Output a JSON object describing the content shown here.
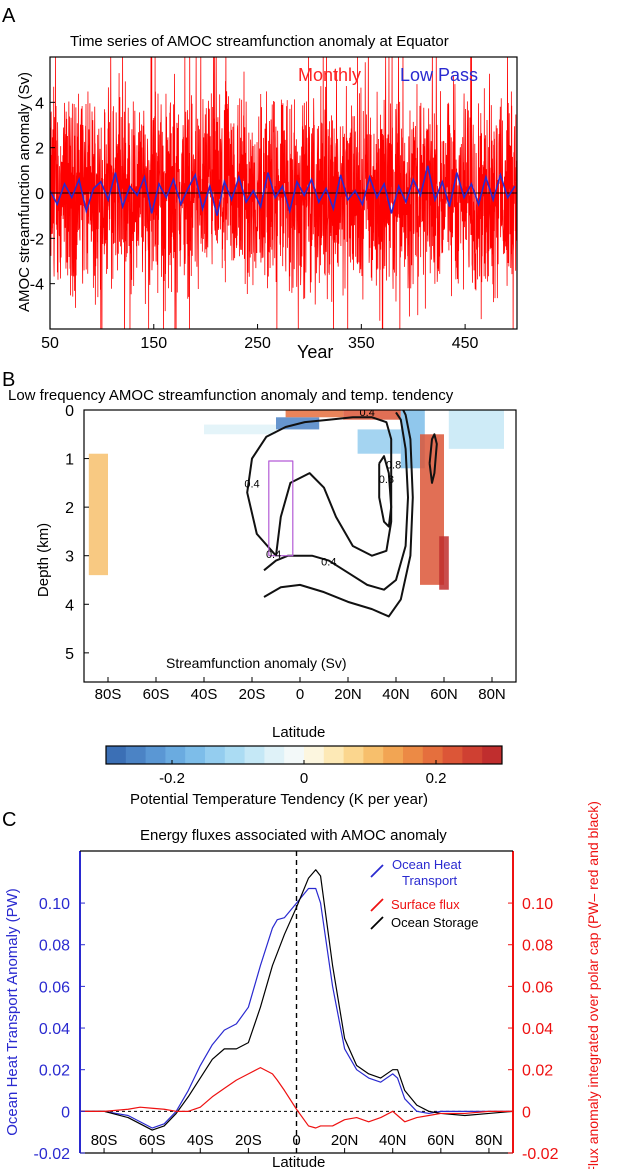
{
  "panels": {
    "a": {
      "letter": "A"
    },
    "b": {
      "letter": "B"
    },
    "c": {
      "letter": "C"
    }
  },
  "chart_data": [
    {
      "id": "A",
      "type": "line",
      "title": "Time series of AMOC streamfunction anomaly at Equator",
      "xlabel": "Year",
      "ylabel": "AMOC streamfunction anomaly (Sv)",
      "xlim": [
        50,
        500
      ],
      "ylim": [
        -6,
        6
      ],
      "xticks": [
        50,
        150,
        250,
        350,
        450
      ],
      "yticks": [
        4,
        2,
        0,
        -2,
        -4
      ],
      "legend": {
        "placement": "top-right"
      },
      "series": [
        {
          "name": "Monthly",
          "color": "#ff0000",
          "envelope": [
            -6,
            6
          ],
          "typical_amplitude": 2.5
        },
        {
          "name": "Low Pass",
          "color": "#2a2ad0",
          "x": [
            50,
            57,
            64,
            71,
            78,
            85,
            92,
            99,
            106,
            113,
            120,
            127,
            134,
            141,
            148,
            155,
            162,
            169,
            176,
            183,
            190,
            197,
            204,
            211,
            218,
            225,
            232,
            239,
            246,
            253,
            260,
            267,
            274,
            281,
            288,
            295,
            302,
            309,
            316,
            323,
            330,
            337,
            344,
            351,
            358,
            365,
            372,
            379,
            386,
            393,
            400,
            407,
            414,
            421,
            428,
            435,
            442,
            449,
            456,
            463,
            470,
            477,
            484,
            491,
            498
          ],
          "y": [
            0.1,
            -0.5,
            0.4,
            -0.2,
            0.6,
            -0.8,
            0.2,
            0.5,
            -0.3,
            0.9,
            -0.6,
            0.3,
            -0.1,
            0.7,
            -0.9,
            0.4,
            -0.2,
            0.6,
            -0.5,
            0.2,
            0.8,
            -0.7,
            0.3,
            -1.0,
            0.5,
            -0.3,
            0.7,
            -0.4,
            0.1,
            -0.6,
            0.9,
            -0.2,
            0.3,
            -0.8,
            0.5,
            -0.1,
            0.6,
            -0.4,
            0.2,
            -0.7,
            0.8,
            -0.3,
            0.1,
            -0.5,
            0.7,
            -0.2,
            0.4,
            -0.9,
            0.3,
            -0.4,
            0.6,
            -0.1,
            1.2,
            -0.3,
            0.5,
            -0.6,
            0.9,
            -0.2,
            0.4,
            -0.5,
            0.7,
            -0.3,
            0.8,
            -0.2,
            0.3
          ]
        },
        {
          "name": "",
          "color": "#000000",
          "x": [
            50,
            500
          ],
          "y": [
            0,
            0
          ]
        }
      ]
    },
    {
      "id": "B",
      "type": "heatmap",
      "title": "Low frequency AMOC streamfunction anomaly and temp. tendency",
      "xlabel": "Latitude",
      "ylabel": "Depth (km)",
      "xlim": [
        -90,
        90
      ],
      "ylim": [
        0,
        5.6
      ],
      "xticks": [
        "80S",
        "60S",
        "40S",
        "20S",
        "0",
        "20N",
        "40N",
        "60N",
        "80N"
      ],
      "yticks": [
        0,
        1,
        2,
        3,
        4,
        5
      ],
      "annotation": "Streamfunction anomaly (Sv)",
      "contour_labels": [
        "0.4",
        "0.4",
        "0.4",
        "0.4",
        "0.8",
        "0.8"
      ],
      "contours": [
        {
          "level": 0.4,
          "points": [
            [
              -15,
              3.3
            ],
            [
              -10,
              3.1
            ],
            [
              -5,
              3.0
            ],
            [
              5,
              3.0
            ],
            [
              12,
              3.1
            ],
            [
              20,
              3.35
            ],
            [
              28,
              3.6
            ],
            [
              35,
              3.7
            ],
            [
              40,
              3.5
            ],
            [
              44,
              2.8
            ],
            [
              45,
              1.8
            ],
            [
              44,
              0.8
            ],
            [
              42,
              0.2
            ],
            [
              40,
              0.05
            ]
          ]
        },
        {
          "level": 0.4,
          "points": [
            [
              -15,
              3.85
            ],
            [
              -8,
              3.65
            ],
            [
              0,
              3.6
            ],
            [
              10,
              3.75
            ],
            [
              20,
              3.95
            ],
            [
              30,
              4.1
            ],
            [
              37,
              4.25
            ],
            [
              42,
              3.9
            ],
            [
              46,
              3.0
            ],
            [
              47,
              1.8
            ],
            [
              46,
              0.6
            ],
            [
              44,
              0.1
            ],
            [
              43,
              0.0
            ]
          ]
        },
        {
          "level": 0.4,
          "points": [
            [
              -10,
              3.0
            ],
            [
              -18,
              2.55
            ],
            [
              -22,
              1.7
            ],
            [
              -20,
              1.0
            ],
            [
              -14,
              0.55
            ],
            [
              -6,
              0.35
            ],
            [
              2,
              0.25
            ],
            [
              12,
              0.2
            ],
            [
              22,
              0.15
            ],
            [
              30,
              0.15
            ],
            [
              36,
              0.25
            ],
            [
              38,
              0.6
            ],
            [
              38,
              1.4
            ],
            [
              38,
              2.3
            ],
            [
              36,
              2.9
            ],
            [
              30,
              3.0
            ],
            [
              22,
              2.8
            ],
            [
              15,
              2.2
            ],
            [
              10,
              1.6
            ],
            [
              4,
              1.3
            ],
            [
              -4,
              1.5
            ],
            [
              -8,
              2.2
            ],
            [
              -10,
              3.0
            ]
          ]
        },
        {
          "level": 0.8,
          "points": [
            [
              33,
              1.1
            ],
            [
              35,
              0.95
            ],
            [
              37,
              1.3
            ],
            [
              38,
              2.0
            ],
            [
              37,
              2.4
            ],
            [
              35,
              2.3
            ],
            [
              33,
              1.8
            ],
            [
              33,
              1.1
            ]
          ]
        },
        {
          "level": 0.2,
          "points": [
            [
              54,
              1.1
            ],
            [
              55,
              0.6
            ],
            [
              56,
              0.5
            ],
            [
              57,
              0.7
            ],
            [
              56,
              1.3
            ],
            [
              55,
              1.5
            ],
            [
              54,
              1.1
            ]
          ]
        },
        {
          "level": 0.0,
          "points": [
            [
              -13,
              3.0
            ],
            [
              -13,
              1.05
            ],
            [
              -3,
              1.05
            ],
            [
              -3,
              3.0
            ],
            [
              -13,
              3.0
            ]
          ]
        }
      ],
      "colorbar": {
        "label": "Potential Temperature Tendency (K per year)",
        "range": [
          -0.3,
          0.3
        ],
        "ticks": [
          "-0.2",
          "0",
          "0.2"
        ],
        "colors": [
          "#3b6fb5",
          "#4b83c5",
          "#5a97d4",
          "#6aabe0",
          "#7dbde9",
          "#94cdef",
          "#abdcf3",
          "#c5e8f6",
          "#dff2f8",
          "#f3f9f9",
          "#fcf6df",
          "#fde9b6",
          "#fbd68e",
          "#f7bf6c",
          "#f2a553",
          "#ec8a45",
          "#e56f3d",
          "#dc5637",
          "#cf4032",
          "#c02e2e"
        ]
      },
      "tendency_regions": [
        {
          "lat": [
            -10,
            8
          ],
          "depth": [
            0.15,
            0.4
          ],
          "value": -0.25
        },
        {
          "lat": [
            -6,
            18
          ],
          "depth": [
            0.0,
            0.15
          ],
          "value": 0.2
        },
        {
          "lat": [
            18,
            42
          ],
          "depth": [
            0.0,
            0.2
          ],
          "value": 0.22
        },
        {
          "lat": [
            24,
            42
          ],
          "depth": [
            0.4,
            0.9
          ],
          "value": -0.14
        },
        {
          "lat": [
            42,
            52
          ],
          "depth": [
            0.0,
            1.2
          ],
          "value": -0.16
        },
        {
          "lat": [
            50,
            60
          ],
          "depth": [
            0.5,
            3.6
          ],
          "value": 0.22
        },
        {
          "lat": [
            58,
            62
          ],
          "depth": [
            2.6,
            3.7
          ],
          "value": 0.28
        },
        {
          "lat": [
            -88,
            -80
          ],
          "depth": [
            0.9,
            3.4
          ],
          "value": 0.1
        },
        {
          "lat": [
            -40,
            -10
          ],
          "depth": [
            0.3,
            0.5
          ],
          "value": -0.05
        },
        {
          "lat": [
            62,
            85
          ],
          "depth": [
            0.0,
            0.8
          ],
          "value": -0.08
        }
      ]
    },
    {
      "id": "C",
      "type": "line",
      "title": "Energy fluxes associated with AMOC anomaly",
      "xlabel": "Latitude",
      "ylabel": "Ocean Heat Transport Anomaly (PW)",
      "ylabel_right": "Energy Flux anomaly integrated over polar cap (PW– red and black)",
      "xlim": [
        -90,
        90
      ],
      "ylim": [
        -0.02,
        0.125
      ],
      "xticks": [
        "80S",
        "60S",
        "40S",
        "20S",
        "0",
        "20N",
        "40N",
        "60N",
        "80N"
      ],
      "yticks": [
        "0.10",
        "0.08",
        "0.06",
        "0.04",
        "0.02",
        "0",
        "-0.02"
      ],
      "yticks_right": [
        "0.10",
        "0.08",
        "0.06",
        "0.04",
        "0.02",
        "0",
        "-0.02"
      ],
      "legend": {
        "placement": "top-right"
      },
      "x": [
        -90,
        -80,
        -70,
        -65,
        -60,
        -55,
        -50,
        -45,
        -40,
        -35,
        -30,
        -25,
        -20,
        -15,
        -10,
        -8,
        -5,
        0,
        5,
        8,
        10,
        15,
        20,
        25,
        30,
        35,
        40,
        42,
        45,
        50,
        55,
        60,
        70,
        80,
        90
      ],
      "series": [
        {
          "name": "Ocean Heat Transport",
          "color": "#2a2ad0",
          "y": [
            0,
            0,
            -0.002,
            -0.005,
            -0.008,
            -0.006,
            0.0,
            0.01,
            0.022,
            0.032,
            0.039,
            0.042,
            0.05,
            0.07,
            0.088,
            0.092,
            0.093,
            0.1,
            0.107,
            0.107,
            0.1,
            0.06,
            0.03,
            0.02,
            0.016,
            0.014,
            0.018,
            0.016,
            0.006,
            0.0,
            -0.001,
            0.0,
            0.0,
            0.0,
            0.0
          ]
        },
        {
          "name": "Surface flux",
          "color": "#ee1111",
          "y": [
            0,
            0,
            0.001,
            0.002,
            0.0015,
            0.001,
            0.0,
            0.0,
            0.002,
            0.007,
            0.011,
            0.015,
            0.018,
            0.021,
            0.018,
            0.015,
            0.01,
            0.001,
            -0.007,
            -0.008,
            -0.007,
            -0.007,
            -0.004,
            -0.003,
            -0.005,
            -0.003,
            0.0,
            -0.002,
            -0.005,
            -0.003,
            -0.002,
            -0.001,
            -0.001,
            0.0,
            0.0
          ]
        },
        {
          "name": "Ocean Storage",
          "color": "#000000",
          "y": [
            0,
            0,
            -0.003,
            -0.006,
            -0.009,
            -0.007,
            -0.001,
            0.007,
            0.016,
            0.025,
            0.03,
            0.03,
            0.033,
            0.05,
            0.07,
            0.076,
            0.085,
            0.098,
            0.112,
            0.116,
            0.113,
            0.07,
            0.035,
            0.022,
            0.018,
            0.016,
            0.02,
            0.02,
            0.01,
            0.003,
            0.0,
            -0.001,
            -0.002,
            -0.001,
            0.0
          ]
        },
        {
          "name": "",
          "color": "#000000",
          "dashed": true,
          "y": [
            0,
            0,
            0,
            0,
            0,
            0,
            0,
            0,
            0,
            0,
            0,
            0,
            0,
            0,
            0,
            0,
            0,
            0,
            0,
            0,
            0,
            0,
            0,
            0,
            0,
            0,
            0,
            0,
            0,
            0,
            0,
            0,
            0,
            0,
            0
          ]
        }
      ]
    }
  ]
}
